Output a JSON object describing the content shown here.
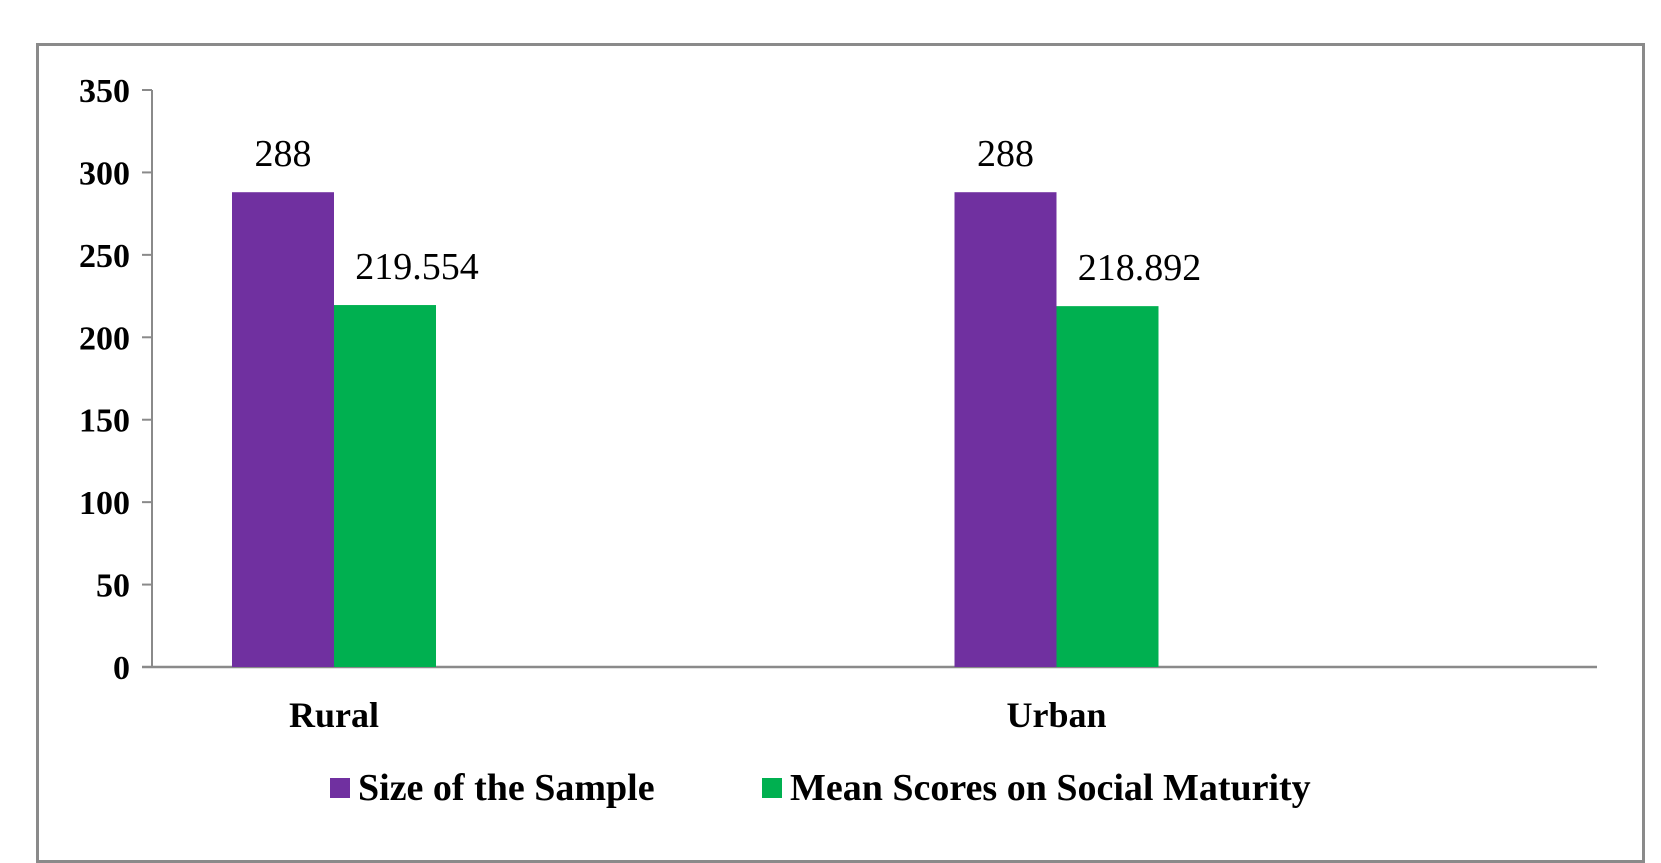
{
  "chart_data": {
    "type": "bar",
    "categories": [
      "Rural",
      "Urban"
    ],
    "series": [
      {
        "name": "Size of the Sample",
        "values": [
          288,
          288
        ],
        "color": "#7030a0",
        "labels": [
          "288",
          "288"
        ]
      },
      {
        "name": "Mean Scores on Social Maturity",
        "values": [
          219.554,
          218.892
        ],
        "color": "#00b050",
        "labels": [
          "219.554",
          "218.892"
        ]
      }
    ],
    "yticks": [
      "0",
      "50",
      "100",
      "150",
      "200",
      "250",
      "300",
      "350"
    ],
    "ylim": [
      0,
      350
    ],
    "grid": false,
    "legend_position": "bottom"
  }
}
